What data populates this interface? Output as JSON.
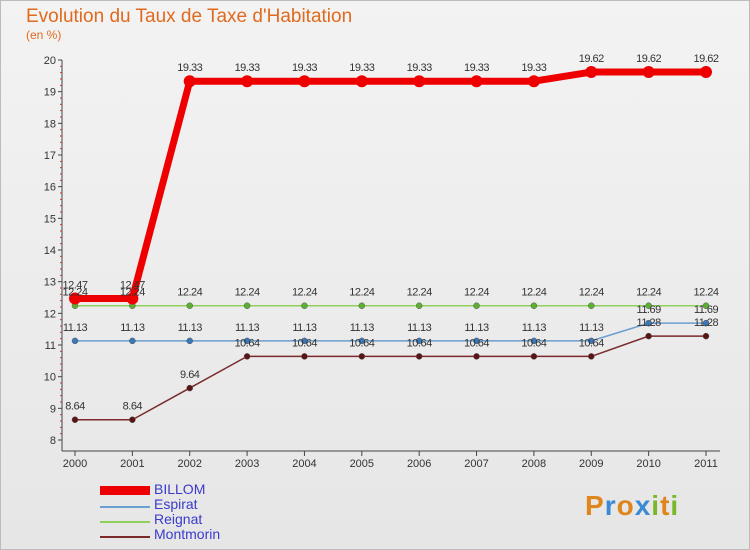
{
  "header": {
    "title": "Evolution du Taux de Taxe d'Habitation",
    "unit": "(en %)"
  },
  "brand": {
    "letters": [
      "P",
      "r",
      "o",
      "x",
      "i",
      "t",
      "i"
    ],
    "colors": [
      "#e0841c",
      "#3a8ad6",
      "#e0841c",
      "#3a8ad6",
      "#7ab82a",
      "#e0841c",
      "#7ab82a"
    ]
  },
  "chart_data": {
    "type": "line",
    "title": "Evolution du Taux de Taxe d'Habitation",
    "ylabel": "(en %)",
    "xlabel": "",
    "categories": [
      "2000",
      "2001",
      "2002",
      "2003",
      "2004",
      "2005",
      "2006",
      "2007",
      "2008",
      "2009",
      "2010",
      "2011"
    ],
    "ylim": [
      8,
      20
    ],
    "yticks": [
      8,
      9,
      10,
      11,
      12,
      13,
      14,
      15,
      16,
      17,
      18,
      19,
      20
    ],
    "grid": "none",
    "legend_position": "bottom-left",
    "series": [
      {
        "name": "BILLOM",
        "color": "#ee0000",
        "values": [
          12.47,
          12.47,
          19.33,
          19.33,
          19.33,
          19.33,
          19.33,
          19.33,
          19.33,
          19.62,
          19.62,
          19.62
        ],
        "labels": [
          "12.47",
          "12.47",
          "19.33",
          "19.33",
          "19.33",
          "19.33",
          "19.33",
          "19.33",
          "19.33",
          "19.62",
          "19.62",
          "19.62"
        ]
      },
      {
        "name": "Espirat",
        "color": "#6a9fcf",
        "values": [
          11.13,
          11.13,
          11.13,
          11.13,
          11.13,
          11.13,
          11.13,
          11.13,
          11.13,
          11.13,
          11.69,
          11.69
        ],
        "labels": [
          "11.13",
          "11.13",
          "11.13",
          "11.13",
          "11.13",
          "11.13",
          "11.13",
          "11.13",
          "11.13",
          "11.13",
          "11.69",
          "11.69"
        ]
      },
      {
        "name": "Reignat",
        "color": "#8fd05a",
        "values": [
          12.24,
          12.24,
          12.24,
          12.24,
          12.24,
          12.24,
          12.24,
          12.24,
          12.24,
          12.24,
          12.24,
          12.24
        ],
        "labels": [
          "12.24",
          "12.24",
          "12.24",
          "12.24",
          "12.24",
          "12.24",
          "12.24",
          "12.24",
          "12.24",
          "12.24",
          "12.24",
          "12.24"
        ]
      },
      {
        "name": "Montmorin",
        "color": "#7a2a2a",
        "values": [
          8.64,
          8.64,
          9.64,
          10.64,
          10.64,
          10.64,
          10.64,
          10.64,
          10.64,
          10.64,
          11.28,
          11.28
        ],
        "labels": [
          "8.64",
          "8.64",
          "9.64",
          "10.64",
          "10.64",
          "10.64",
          "10.64",
          "10.64",
          "10.64",
          "10.64",
          "11.28",
          "11.28"
        ]
      }
    ]
  }
}
